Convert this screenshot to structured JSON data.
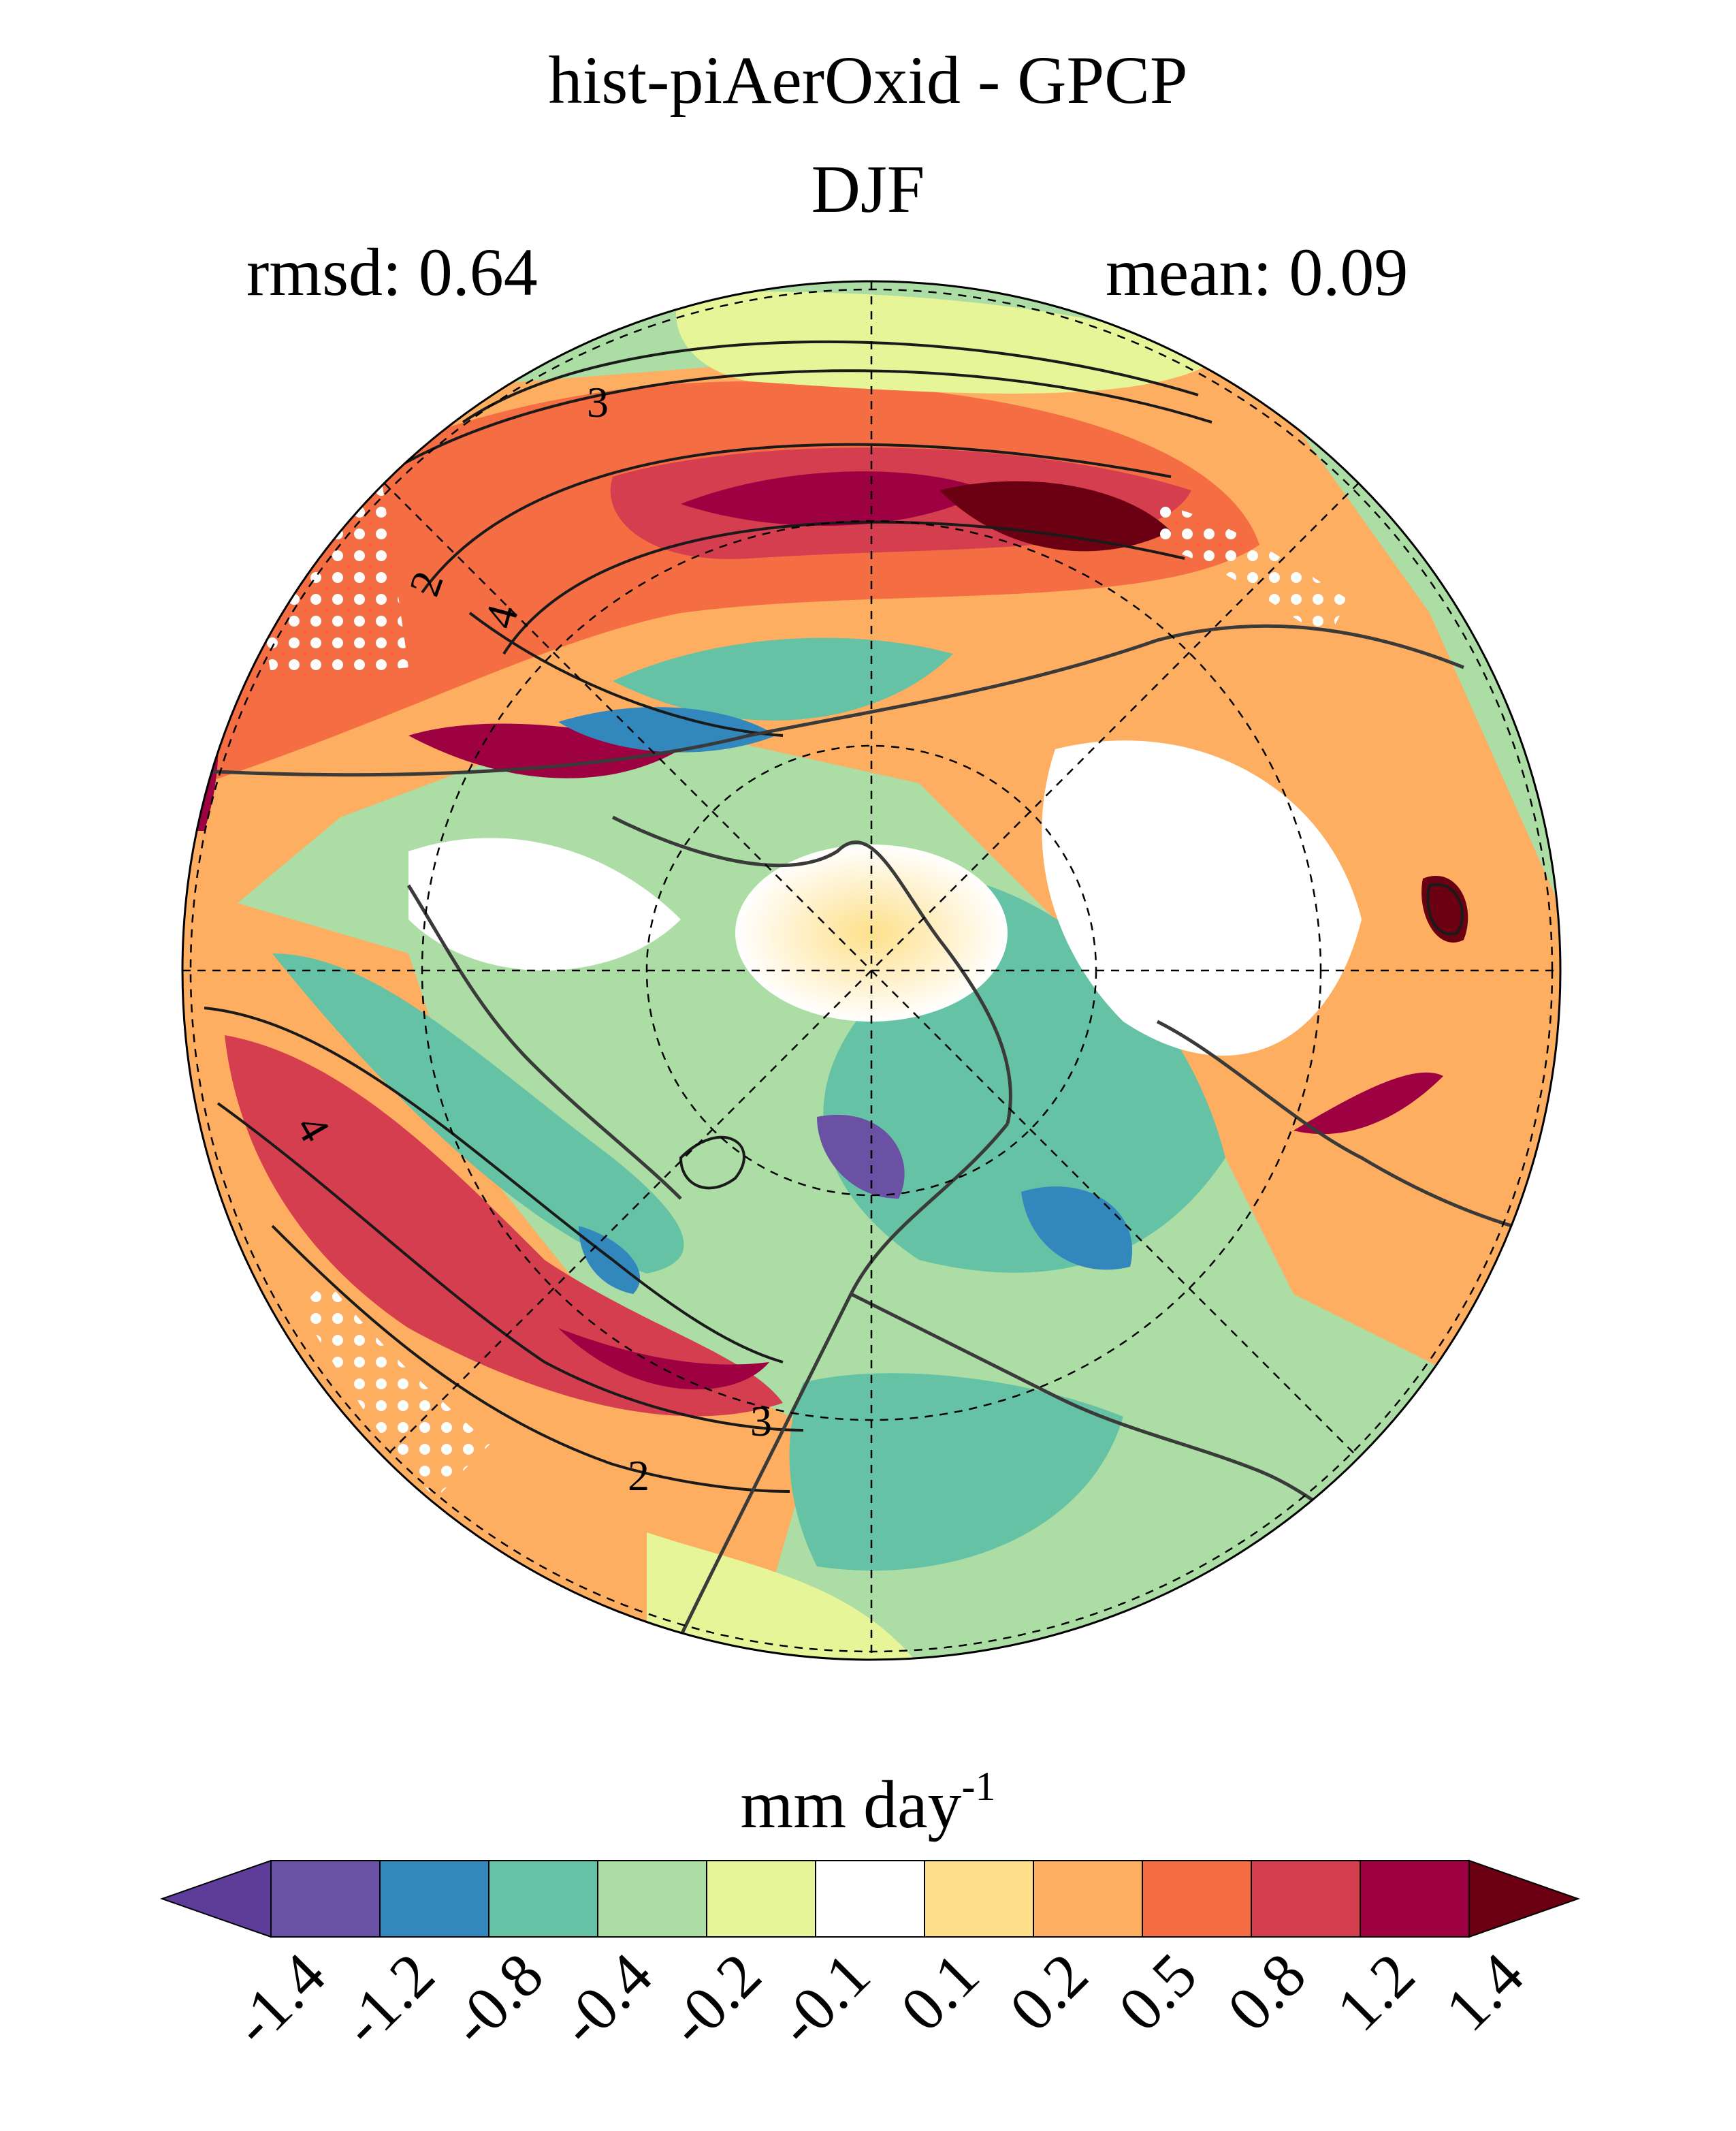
{
  "title": "hist-piAerOxid - GPCP",
  "season": "DJF",
  "stats": {
    "rmsd_label": "rmsd:",
    "rmsd_value": "0.64",
    "mean_label": "mean:",
    "mean_value": "0.09"
  },
  "map": {
    "projection": "north polar stereographic",
    "contour_labels": [
      "3",
      "2",
      "4",
      "4",
      "3",
      "2"
    ],
    "stippling": "white dots",
    "graticule": "dashed"
  },
  "colorbar": {
    "units_base": "mm day",
    "units_exp": "-1",
    "levels": [
      "-1.4",
      "-1.2",
      "-0.8",
      "-0.4",
      "-0.2",
      "-0.1",
      "0.1",
      "0.2",
      "0.5",
      "0.8",
      "1.2",
      "1.4"
    ],
    "colors": [
      "#5e3c99",
      "#6a51a3",
      "#3288bd",
      "#66c2a5",
      "#abdda4",
      "#e6f598",
      "#ffffff",
      "#fee08b",
      "#fdae61",
      "#f46d43",
      "#d53e4f",
      "#9e0142",
      "#6b0012"
    ],
    "extend": "both"
  }
}
